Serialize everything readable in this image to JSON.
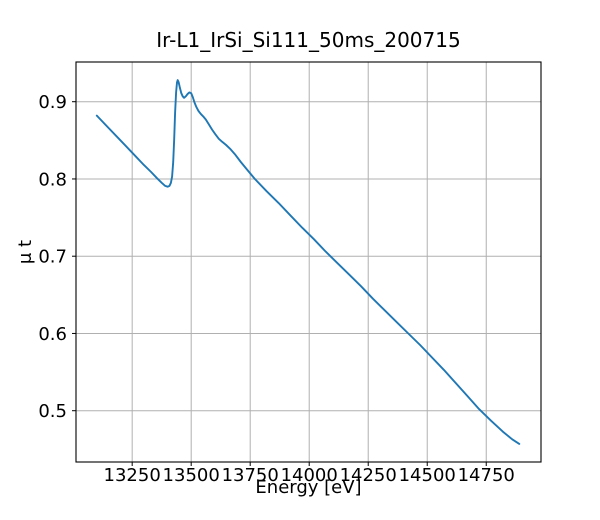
{
  "figure": {
    "background": "#ffffff"
  },
  "chart_data": {
    "type": "line",
    "title": "Ir-L1_IrSi_Si111_50ms_200715",
    "xlabel": "Energy [eV]",
    "ylabel": "μ t",
    "xlim": [
      13012,
      14982
    ],
    "ylim": [
      0.4336,
      0.9514
    ],
    "xticks": [
      13250,
      13500,
      13750,
      14000,
      14250,
      14500,
      14750
    ],
    "yticks": [
      0.5,
      0.6,
      0.7,
      0.8,
      0.9
    ],
    "grid": true,
    "legend": "none",
    "styles": {
      "line_color": "#1f77b4",
      "line_width": 1.9,
      "grid_color": "#b0b0b0",
      "grid_width": 1,
      "spine_color": "#000000",
      "tick_color": "#000000",
      "tick_length": 4
    },
    "series": [
      {
        "name": "Ir-L1_IrSi_Si111_50ms_200715",
        "x": [
          13100,
          13150,
          13200,
          13250,
          13300,
          13330,
          13355,
          13375,
          13390,
          13400,
          13408,
          13414,
          13419,
          13424,
          13428,
          13432,
          13436,
          13440,
          13443,
          13447,
          13452,
          13458,
          13464,
          13470,
          13477,
          13485,
          13492,
          13500,
          13507,
          13514,
          13522,
          13531,
          13541,
          13551,
          13562,
          13574,
          13588,
          13602,
          13617,
          13632,
          13648,
          13665,
          13685,
          13710,
          13740,
          13770,
          13820,
          13870,
          13920,
          13970,
          14020,
          14070,
          14120,
          14170,
          14220,
          14270,
          14320,
          14370,
          14420,
          14470,
          14520,
          14570,
          14620,
          14670,
          14720,
          14770,
          14820,
          14860,
          14890
        ],
        "y": [
          0.882,
          0.866,
          0.85,
          0.834,
          0.818,
          0.809,
          0.801,
          0.795,
          0.791,
          0.79,
          0.791,
          0.795,
          0.803,
          0.822,
          0.852,
          0.886,
          0.912,
          0.925,
          0.928,
          0.925,
          0.918,
          0.911,
          0.907,
          0.905,
          0.907,
          0.91,
          0.912,
          0.911,
          0.906,
          0.899,
          0.893,
          0.888,
          0.884,
          0.881,
          0.877,
          0.871,
          0.864,
          0.858,
          0.852,
          0.848,
          0.844,
          0.839,
          0.832,
          0.822,
          0.811,
          0.8,
          0.784,
          0.769,
          0.753,
          0.737,
          0.722,
          0.706,
          0.691,
          0.676,
          0.661,
          0.645,
          0.63,
          0.615,
          0.6,
          0.585,
          0.569,
          0.553,
          0.536,
          0.519,
          0.502,
          0.487,
          0.473,
          0.463,
          0.457
        ]
      }
    ]
  }
}
